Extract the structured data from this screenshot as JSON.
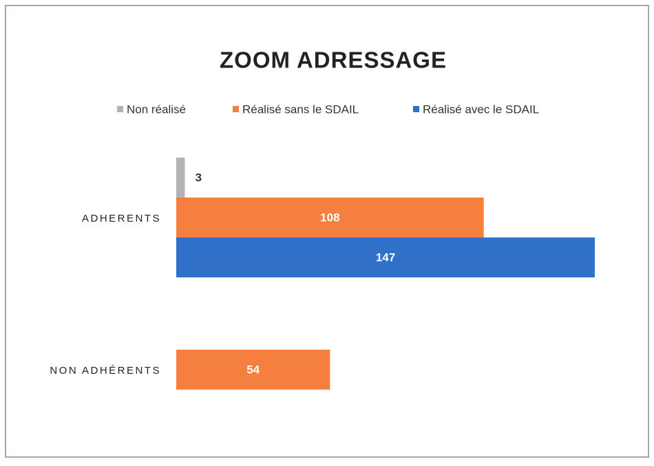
{
  "chart_data": {
    "type": "bar",
    "orientation": "horizontal",
    "title": "ZOOM ADRESSAGE",
    "categories": [
      "ADHERENTS",
      "NON ADHÉRENTS"
    ],
    "series": [
      {
        "name": "Non réalisé",
        "color": "#b3b3b3",
        "values": [
          3,
          null
        ]
      },
      {
        "name": "Réalisé sans le SDAIL",
        "color": "#f47f3e",
        "values": [
          108,
          54
        ]
      },
      {
        "name": "Réalisé avec le SDAIL",
        "color": "#3070c8",
        "values": [
          147,
          null
        ]
      }
    ],
    "legend": "top"
  }
}
